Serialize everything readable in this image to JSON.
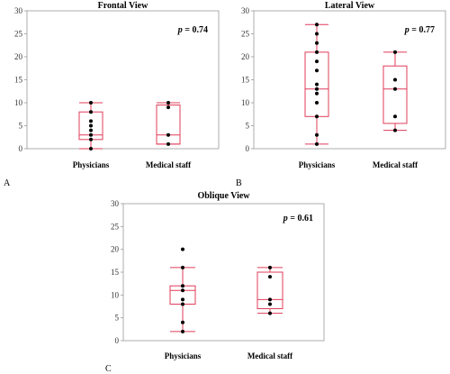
{
  "chart_data": [
    {
      "type": "box",
      "letter": "A",
      "title": "Frontal View",
      "p_prefix": "p",
      "p_value": "= 0.74",
      "categories": [
        "Physicians",
        "Medical staff"
      ],
      "ylim": [
        0,
        30
      ],
      "yticks": [
        0,
        5,
        10,
        15,
        20,
        25,
        30
      ],
      "box_color": "#e03c5a",
      "point_color": "#000000",
      "boxes": [
        {
          "category": "Physicians",
          "min": 0,
          "q1": 2,
          "median": 3,
          "q3": 8,
          "max": 10,
          "points": [
            0,
            2,
            3,
            4,
            5,
            6,
            8,
            10
          ]
        },
        {
          "category": "Medical staff",
          "min": 1,
          "q1": 1,
          "median": 3,
          "q3": 9.5,
          "max": 10,
          "points": [
            1,
            3,
            9,
            10
          ]
        }
      ]
    },
    {
      "type": "box",
      "letter": "B",
      "title": "Lateral View",
      "p_prefix": "p",
      "p_value": "= 0.77",
      "categories": [
        "Physicians",
        "Medical staff"
      ],
      "ylim": [
        0,
        30
      ],
      "yticks": [
        0,
        5,
        10,
        15,
        20,
        25,
        30
      ],
      "box_color": "#e03c5a",
      "point_color": "#000000",
      "boxes": [
        {
          "category": "Physicians",
          "min": 1,
          "q1": 7,
          "median": 13,
          "q3": 21,
          "max": 27,
          "points": [
            1,
            3,
            7,
            10,
            12,
            13,
            14,
            17,
            19,
            21,
            23,
            25,
            27
          ]
        },
        {
          "category": "Medical staff",
          "min": 4,
          "q1": 5.5,
          "median": 13,
          "q3": 18,
          "max": 21,
          "points": [
            4,
            7,
            13,
            15,
            21
          ]
        }
      ]
    },
    {
      "type": "box",
      "letter": "C",
      "title": "Oblique View",
      "p_prefix": "p",
      "p_value": "= 0.61",
      "categories": [
        "Physicians",
        "Medical staff"
      ],
      "ylim": [
        0,
        30
      ],
      "yticks": [
        0,
        5,
        10,
        15,
        20,
        25,
        30
      ],
      "box_color": "#e03c5a",
      "point_color": "#000000",
      "boxes": [
        {
          "category": "Physicians",
          "min": 2,
          "q1": 8,
          "median": 11,
          "q3": 12,
          "max": 16,
          "points": [
            2,
            4,
            8,
            9,
            11,
            12,
            16,
            20
          ]
        },
        {
          "category": "Medical staff",
          "min": 6,
          "q1": 7,
          "median": 9,
          "q3": 15,
          "max": 16,
          "points": [
            6,
            8,
            9,
            14,
            16
          ]
        }
      ]
    }
  ]
}
